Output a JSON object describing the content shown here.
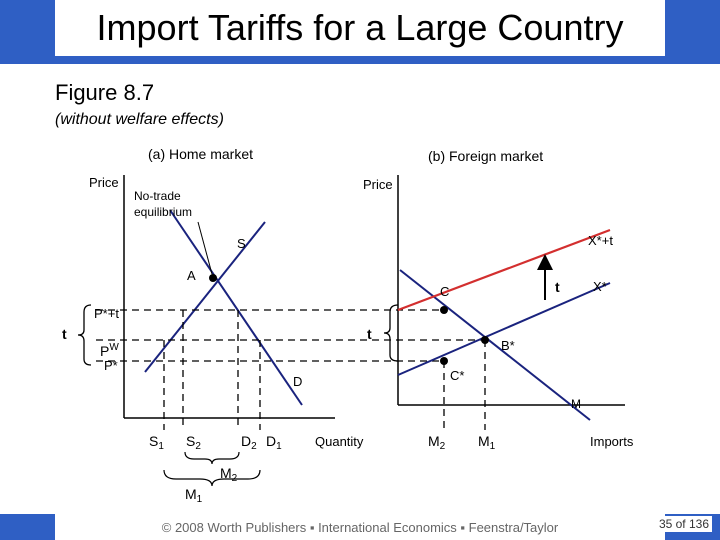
{
  "header": {
    "title": "Import Tariffs for a Large Country"
  },
  "figure": {
    "label": "Figure 8.7",
    "subtitle": "(without welfare effects)"
  },
  "panel_a": {
    "title": "(a) Home market",
    "price_label": "Price",
    "quantity_label": "Quantity"
  },
  "panel_b": {
    "title": "(b) Foreign market",
    "price_label": "Price",
    "quantity_label": "Imports"
  },
  "labels": {
    "no_trade_line1": "No-trade",
    "no_trade_line2": "equilibrium",
    "S": "S",
    "D": "D",
    "A": "A",
    "Pstar_t": "P*+t",
    "t_left": "t",
    "Pw": "P",
    "Pw_sup": "W",
    "Pstar": "P*",
    "t_mid": "t",
    "C": "C",
    "Bstar": "B*",
    "Cstar": "C*",
    "M_axis": "M",
    "Xstar_t": "X*+t",
    "Xstar": "X*",
    "t_right": "t",
    "S1": "S",
    "S1_sub": "1",
    "S2": "S",
    "S2_sub": "2",
    "D2": "D",
    "D2_sub": "2",
    "D1": "D",
    "D1_sub": "1",
    "M2_left": "M",
    "M2_left_sub": "2",
    "M1_left": "M",
    "M1_left_sub": "1",
    "M2_right": "M",
    "M2_right_sub": "2",
    "M1_right": "M",
    "M1_right_sub": "1"
  },
  "footer": {
    "text": "© 2008 Worth Publishers ▪ International Economics ▪ Feenstra/Taylor",
    "page": "35 of 136"
  },
  "colors": {
    "accent": "#2f5fc4",
    "curve": "#1a237e",
    "tariff_curve": "#d32f2f"
  }
}
